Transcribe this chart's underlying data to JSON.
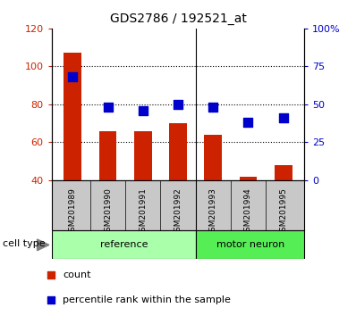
{
  "title": "GDS2786 / 192521_at",
  "categories": [
    "GSM201989",
    "GSM201990",
    "GSM201991",
    "GSM201992",
    "GSM201993",
    "GSM201994",
    "GSM201995"
  ],
  "bar_values": [
    107,
    66,
    66,
    70,
    64,
    42,
    48
  ],
  "percentile_values": [
    68,
    48,
    46,
    50,
    48,
    38,
    41
  ],
  "bar_color": "#cc2200",
  "dot_color": "#0000cc",
  "ylim_left": [
    40,
    120
  ],
  "ylim_right": [
    0,
    100
  ],
  "yticks_left": [
    40,
    60,
    80,
    100,
    120
  ],
  "ytick_labels_left": [
    "40",
    "60",
    "80",
    "100",
    "120"
  ],
  "yticks_right_vals": [
    0,
    25,
    50,
    75,
    100
  ],
  "ytick_labels_right": [
    "0",
    "25",
    "50",
    "75",
    "100%"
  ],
  "group_labels": [
    "reference",
    "motor neuron"
  ],
  "cell_type_label": "cell type",
  "legend_count_label": "count",
  "legend_percentile_label": "percentile rank within the sample",
  "tick_area_bg": "#c8c8c8",
  "bar_width": 0.5,
  "dot_size": 45,
  "reference_color": "#aaffaa",
  "motor_neuron_color": "#55ee55",
  "n_ref": 4,
  "n_total": 7
}
